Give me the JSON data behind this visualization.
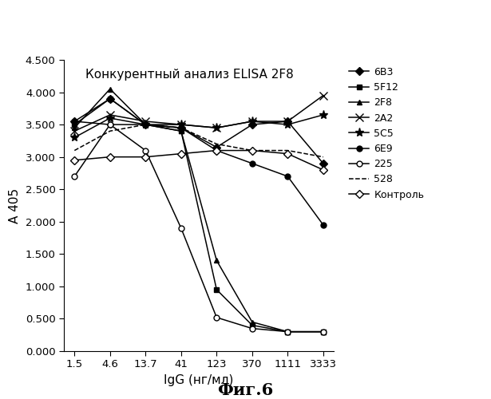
{
  "title": "Конкурентный анализ ELISA 2F8",
  "xlabel": "IgG (нг/мл)",
  "ylabel": "А 405",
  "caption": "Фиг.6",
  "x_labels": [
    "1.5",
    "4.6",
    "13.7",
    "41",
    "123",
    "370",
    "1111",
    "3333"
  ],
  "x_positions": [
    0,
    1,
    2,
    3,
    4,
    5,
    6,
    7
  ],
  "ylim": [
    0.0,
    4.5
  ],
  "yticks": [
    0.0,
    0.5,
    1.0,
    1.5,
    2.0,
    2.5,
    3.0,
    3.5,
    4.0,
    4.5
  ],
  "series": [
    {
      "label": "6B3",
      "marker": "D",
      "linestyle": "-",
      "markersize": 5,
      "fillstyle": "full",
      "values": [
        3.55,
        3.9,
        3.5,
        3.45,
        3.15,
        3.5,
        3.55,
        2.9
      ]
    },
    {
      "label": "5F12",
      "marker": "s",
      "linestyle": "-",
      "markersize": 5,
      "fillstyle": "full",
      "values": [
        3.5,
        3.9,
        3.5,
        3.4,
        0.95,
        0.4,
        0.3,
        0.3
      ]
    },
    {
      "label": "2F8",
      "marker": "^",
      "linestyle": "-",
      "markersize": 5,
      "fillstyle": "full",
      "values": [
        3.45,
        4.05,
        3.5,
        3.4,
        1.4,
        0.45,
        0.3,
        0.3
      ]
    },
    {
      "label": "2A2",
      "marker": "x",
      "linestyle": "-",
      "markersize": 7,
      "fillstyle": "full",
      "values": [
        3.4,
        3.65,
        3.55,
        3.5,
        3.45,
        3.55,
        3.55,
        3.95
      ]
    },
    {
      "label": "5C5",
      "marker": "*",
      "linestyle": "-",
      "markersize": 8,
      "fillstyle": "full",
      "values": [
        3.3,
        3.6,
        3.5,
        3.5,
        3.45,
        3.55,
        3.5,
        3.65
      ]
    },
    {
      "label": "6E9",
      "marker": "o",
      "linestyle": "-",
      "markersize": 5,
      "fillstyle": "full",
      "values": [
        3.55,
        3.5,
        3.5,
        3.45,
        3.1,
        2.9,
        2.7,
        1.95
      ]
    },
    {
      "label": "225",
      "marker": "o",
      "linestyle": "-",
      "markersize": 5,
      "fillstyle": "none",
      "values": [
        2.7,
        3.5,
        3.1,
        1.9,
        0.52,
        0.35,
        0.3,
        0.3
      ]
    },
    {
      "label": "528",
      "marker": "none",
      "linestyle": "--",
      "markersize": 0,
      "fillstyle": "full",
      "values": [
        3.1,
        3.4,
        3.5,
        3.45,
        3.2,
        3.1,
        3.1,
        3.0
      ]
    },
    {
      "label": "Контроль",
      "marker": "D",
      "linestyle": "-",
      "markersize": 5,
      "fillstyle": "none",
      "values": [
        2.95,
        3.0,
        3.0,
        3.05,
        3.1,
        3.1,
        3.05,
        2.8
      ]
    }
  ]
}
